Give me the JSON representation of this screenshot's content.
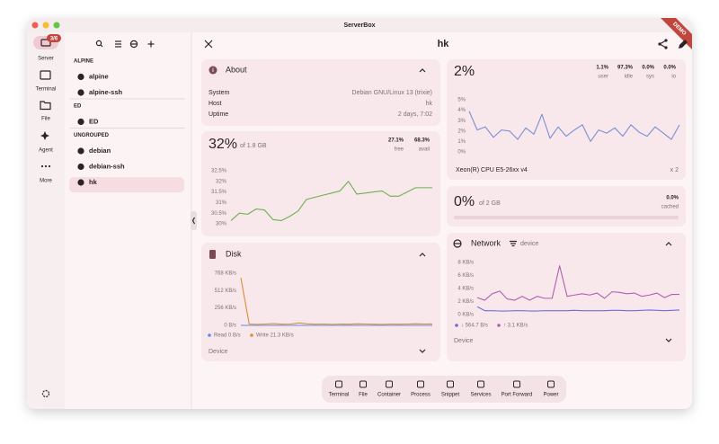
{
  "window": {
    "title": "ServerBox",
    "badge": "DEMO"
  },
  "rail": {
    "items": [
      {
        "label": "Server",
        "badge": "3/6"
      },
      {
        "label": "Terminal"
      },
      {
        "label": "File"
      },
      {
        "label": "Agent"
      },
      {
        "label": "More"
      }
    ]
  },
  "server_list": {
    "groups": [
      {
        "name": "ALPINE",
        "servers": [
          "alpine",
          "alpine-ssh"
        ]
      },
      {
        "name": "ED",
        "servers": [
          "ED"
        ]
      },
      {
        "name": "UNGROUPED",
        "servers": [
          "debian",
          "debian-ssh",
          "hk"
        ]
      }
    ]
  },
  "header": {
    "title": "hk"
  },
  "about": {
    "title": "About",
    "rows": [
      [
        "System",
        "Debian GNU/Linux 13 (trixie)"
      ],
      [
        "Host",
        "hk"
      ],
      [
        "Uptime",
        "2 days, 7:02"
      ]
    ]
  },
  "memory": {
    "percent": "32%",
    "total": "of 1.8 GB",
    "stats": [
      {
        "value": "27.1%",
        "label": "free"
      },
      {
        "value": "68.3%",
        "label": "avail"
      }
    ],
    "chart": {
      "type": "line",
      "grid": false,
      "ylim": [
        30,
        32.5
      ],
      "yticks": [
        {
          "value": 30,
          "label": "30%"
        },
        {
          "value": 30.5,
          "label": "30.5%"
        },
        {
          "value": 31,
          "label": "31%"
        },
        {
          "value": 31.5,
          "label": "31.5%"
        },
        {
          "value": 32,
          "label": "32%"
        },
        {
          "value": 32.5,
          "label": "32.5%"
        }
      ],
      "series": [
        {
          "color": "#6cb24e",
          "values": [
            30.15,
            30.5,
            30.45,
            30.7,
            30.65,
            30.2,
            30.15,
            30.35,
            30.6,
            31.15,
            31.25,
            31.35,
            31.45,
            31.55,
            32.0,
            31.4,
            31.45,
            31.5,
            31.55,
            31.3,
            31.3,
            31.5,
            31.7,
            31.7,
            31.7
          ]
        }
      ]
    }
  },
  "disk": {
    "title": "Disk",
    "device": "Device",
    "chart": {
      "type": "line",
      "grid": false,
      "ylim": [
        0,
        768
      ],
      "yticks": [
        {
          "value": 0,
          "label": "0 B/s"
        },
        {
          "value": 256,
          "label": "256 KB/s"
        },
        {
          "value": 512,
          "label": "512 KB/s"
        },
        {
          "value": 768,
          "label": "768 KB/s"
        }
      ],
      "series": [
        {
          "name": "Read 0 B/s",
          "color": "#5b8def",
          "values": [
            0,
            0,
            0,
            0,
            0,
            0,
            0,
            0,
            0,
            0,
            0,
            0,
            0,
            0,
            0,
            0,
            0,
            0,
            0,
            0,
            0,
            0,
            0,
            0
          ]
        },
        {
          "name": "Write 21.3 KB/s",
          "color": "#d8903c",
          "values": [
            700,
            20,
            15,
            20,
            25,
            18,
            20,
            35,
            22,
            18,
            20,
            15,
            20,
            18,
            22,
            20,
            18,
            15,
            20,
            18,
            20,
            22,
            20,
            21.3
          ]
        }
      ]
    }
  },
  "cpu": {
    "percent": "2%",
    "stats": [
      {
        "value": "1.1%",
        "label": "user"
      },
      {
        "value": "97.3%",
        "label": "idle"
      },
      {
        "value": "0.0%",
        "label": "sys"
      },
      {
        "value": "0.0%",
        "label": "io"
      }
    ],
    "model": "Xeon(R) CPU E5-26xx v4",
    "count": "x 2",
    "chart": {
      "type": "line",
      "grid": false,
      "ylim": [
        0,
        5
      ],
      "yticks": [
        {
          "value": 0,
          "label": "0%"
        },
        {
          "value": 1,
          "label": "1%"
        },
        {
          "value": 2,
          "label": "2%"
        },
        {
          "value": 3,
          "label": "3%"
        },
        {
          "value": 4,
          "label": "4%"
        },
        {
          "value": 5,
          "label": "5%"
        }
      ],
      "series": [
        {
          "color": "#7a8fd6",
          "values": [
            3.9,
            2.1,
            2.4,
            1.4,
            2.1,
            2.0,
            1.2,
            2.3,
            1.7,
            3.6,
            1.3,
            2.4,
            1.5,
            2.1,
            2.6,
            1.0,
            2.1,
            1.8,
            2.3,
            1.5,
            2.6,
            1.9,
            1.5,
            2.4,
            1.8,
            1.2,
            2.6
          ]
        }
      ]
    }
  },
  "swap": {
    "percent": "0%",
    "total": "of 2 GB",
    "stats": [
      {
        "value": "0.0%",
        "label": "cached"
      }
    ]
  },
  "network": {
    "title": "Network",
    "filter": "device",
    "device": "Device",
    "chart": {
      "type": "line",
      "grid": false,
      "ylim": [
        0,
        8
      ],
      "yticks": [
        {
          "value": 0,
          "label": "0 KB/s"
        },
        {
          "value": 2,
          "label": "2 KB/s"
        },
        {
          "value": 4,
          "label": "4 KB/s"
        },
        {
          "value": 6,
          "label": "6 KB/s"
        },
        {
          "value": 8,
          "label": "8 KB/s"
        }
      ],
      "series": [
        {
          "name": "↓ 564.7 B/s",
          "color": "#6b6fd8",
          "values": [
            1.2,
            0.6,
            0.6,
            0.55,
            0.55,
            0.6,
            0.6,
            0.55,
            0.55,
            0.6,
            0.6,
            0.6,
            0.6,
            0.65,
            0.6,
            0.6,
            0.6,
            0.6,
            0.65,
            0.65,
            0.6,
            0.6,
            0.65,
            0.7,
            0.65,
            0.6,
            0.65,
            0.7
          ]
        },
        {
          "name": "↑ 3.1 KB/s",
          "color": "#b05fb3",
          "values": [
            2.6,
            2.2,
            3.2,
            3.6,
            2.4,
            2.2,
            2.8,
            2.2,
            2.8,
            2.5,
            2.5,
            7.5,
            2.8,
            3.0,
            3.2,
            3.0,
            3.3,
            2.5,
            3.5,
            3.4,
            3.2,
            3.3,
            2.8,
            3.0,
            3.3,
            2.6,
            3.1,
            3.1
          ]
        }
      ]
    }
  },
  "toolbar": {
    "items": [
      "Terminal",
      "File",
      "Container",
      "Process",
      "Snippet",
      "Services",
      "Port Forward",
      "Power"
    ]
  }
}
